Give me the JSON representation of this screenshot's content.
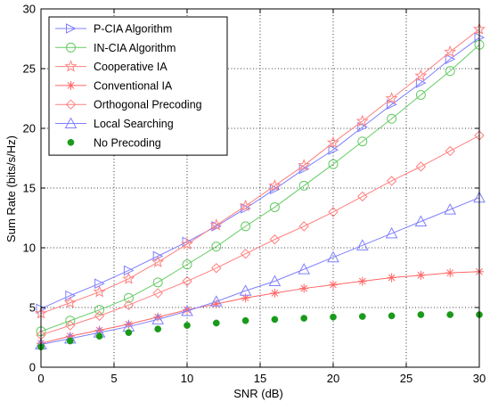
{
  "chart_data": {
    "type": "line",
    "title": "",
    "xlabel": "SNR (dB)",
    "ylabel": "Sum Rate (bits/s/Hz)",
    "xlim": [
      0,
      30
    ],
    "ylim": [
      0,
      30
    ],
    "xticks": [
      0,
      5,
      10,
      15,
      20,
      25,
      30
    ],
    "yticks": [
      0,
      5,
      10,
      15,
      20,
      25,
      30
    ],
    "grid": true,
    "legend_position": "top-left",
    "x": [
      0,
      2,
      4,
      6,
      8,
      10,
      12,
      14,
      16,
      18,
      20,
      22,
      24,
      26,
      28,
      30
    ],
    "series": [
      {
        "name": "P-CIA Algorithm",
        "color": "#8080ff",
        "marker": "triangle-right",
        "values": [
          4.9,
          6.0,
          7.0,
          8.1,
          9.3,
          10.5,
          11.8,
          13.3,
          14.9,
          16.6,
          18.2,
          20.1,
          22.0,
          23.8,
          25.8,
          27.6
        ]
      },
      {
        "name": "IN-CIA Algorithm",
        "color": "#66cc66",
        "marker": "circle",
        "values": [
          3.0,
          3.9,
          4.8,
          5.8,
          7.1,
          8.6,
          10.1,
          11.8,
          13.4,
          15.2,
          17.0,
          18.9,
          20.8,
          22.8,
          24.8,
          27.0
        ]
      },
      {
        "name": "Cooperative IA",
        "color": "#ff8080",
        "marker": "star",
        "values": [
          4.5,
          5.4,
          6.3,
          7.4,
          8.8,
          10.3,
          11.9,
          13.5,
          15.2,
          16.9,
          18.8,
          20.6,
          22.5,
          24.4,
          26.4,
          28.3
        ]
      },
      {
        "name": "Conventional IA",
        "color": "#ff6666",
        "marker": "asterisk",
        "values": [
          2.0,
          2.6,
          3.1,
          3.6,
          4.2,
          4.8,
          5.3,
          5.8,
          6.2,
          6.6,
          6.9,
          7.2,
          7.5,
          7.7,
          7.9,
          8.0
        ]
      },
      {
        "name": "Orthogonal Precoding",
        "color": "#ff8080",
        "marker": "diamond",
        "values": [
          2.7,
          3.5,
          4.3,
          5.2,
          6.2,
          7.2,
          8.3,
          9.5,
          10.7,
          11.8,
          13.0,
          14.3,
          15.6,
          16.8,
          18.1,
          19.4
        ]
      },
      {
        "name": "Local Searching",
        "color": "#8080ff",
        "marker": "triangle-up",
        "values": [
          1.9,
          2.4,
          2.9,
          3.4,
          4.0,
          4.7,
          5.5,
          6.4,
          7.2,
          8.2,
          9.2,
          10.2,
          11.2,
          12.2,
          13.2,
          14.2
        ]
      },
      {
        "name": "No Precoding",
        "color": "#1a9a1a",
        "marker": "filled-circle",
        "values": [
          1.7,
          2.2,
          2.6,
          2.9,
          3.2,
          3.5,
          3.7,
          3.9,
          4.0,
          4.1,
          4.2,
          4.25,
          4.3,
          4.4,
          4.4,
          4.4
        ]
      }
    ]
  }
}
